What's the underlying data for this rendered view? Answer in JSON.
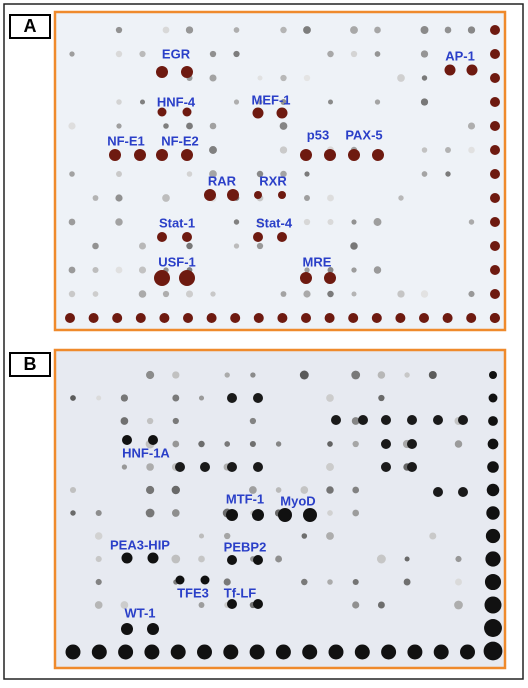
{
  "panels": [
    {
      "label": "A",
      "spots": [
        {
          "label": "EGR"
        },
        {
          "label": "AP-1"
        },
        {
          "label": "HNF-4"
        },
        {
          "label": "MEF-1"
        },
        {
          "label": "NF-E1"
        },
        {
          "label": "NF-E2"
        },
        {
          "label": "p53"
        },
        {
          "label": "PAX-5"
        },
        {
          "label": "RAR"
        },
        {
          "label": "RXR"
        },
        {
          "label": "Stat-1"
        },
        {
          "label": "Stat-4"
        },
        {
          "label": "USF-1"
        },
        {
          "label": "MRE"
        }
      ]
    },
    {
      "label": "B",
      "spots": [
        {
          "label": "HNF-1A"
        },
        {
          "label": "MTF-1"
        },
        {
          "label": "MyoD"
        },
        {
          "label": "PEA3-HIP"
        },
        {
          "label": "PEBP2"
        },
        {
          "label": "TFE3"
        },
        {
          "label": "Tf-LF"
        },
        {
          "label": "WT-1"
        }
      ]
    }
  ]
}
